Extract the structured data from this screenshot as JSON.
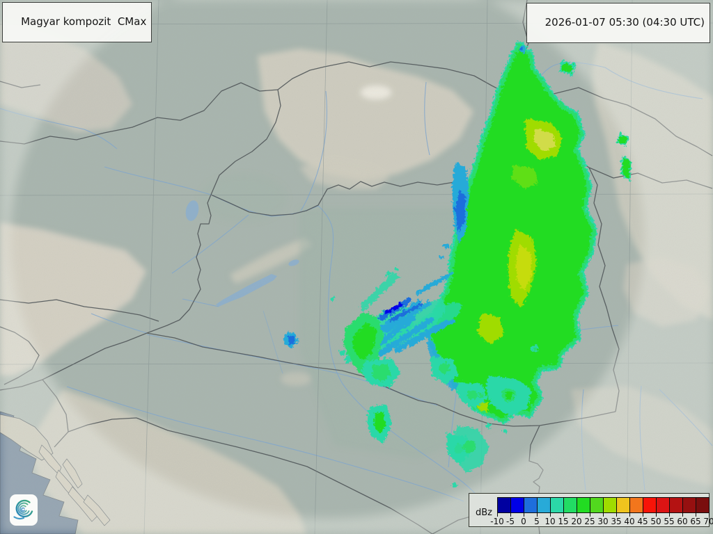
{
  "product": {
    "title": "Magyar kompozit  CMax"
  },
  "timestamp": {
    "label": "2026-01-07 05:30 (04:30 UTC)"
  },
  "legend": {
    "unit": "dBz",
    "tick_labels": [
      "-10",
      "-5",
      "0",
      "5",
      "10",
      "15",
      "20",
      "25",
      "30",
      "35",
      "40",
      "45",
      "50",
      "55",
      "60",
      "65",
      "70"
    ],
    "cell_colors": [
      "#0000a0",
      "#0000e8",
      "#1e6edc",
      "#28aad8",
      "#2bd8a8",
      "#22dc64",
      "#22dc22",
      "#52d81e",
      "#a0dc00",
      "#efc41e",
      "#f2761c",
      "#f81408",
      "#dc1414",
      "#b41212",
      "#961010",
      "#7a0e0e"
    ]
  },
  "logo": {
    "name": "hungaromet-spiral-logo",
    "gradient_start": "#2b84c0",
    "gradient_end": "#3fae74"
  },
  "map": {
    "land_color": "#a9b6af",
    "highland_color": "#d9d4c6",
    "peak_color": "#efece2",
    "sea_color": "#5d7590",
    "lake_color": "#8fb0cb",
    "river_color": "#7fa6cf",
    "border_color": "#4d5356",
    "graticule_color": "#7d8a8c",
    "out_of_range_haze": "#edf0e8"
  }
}
